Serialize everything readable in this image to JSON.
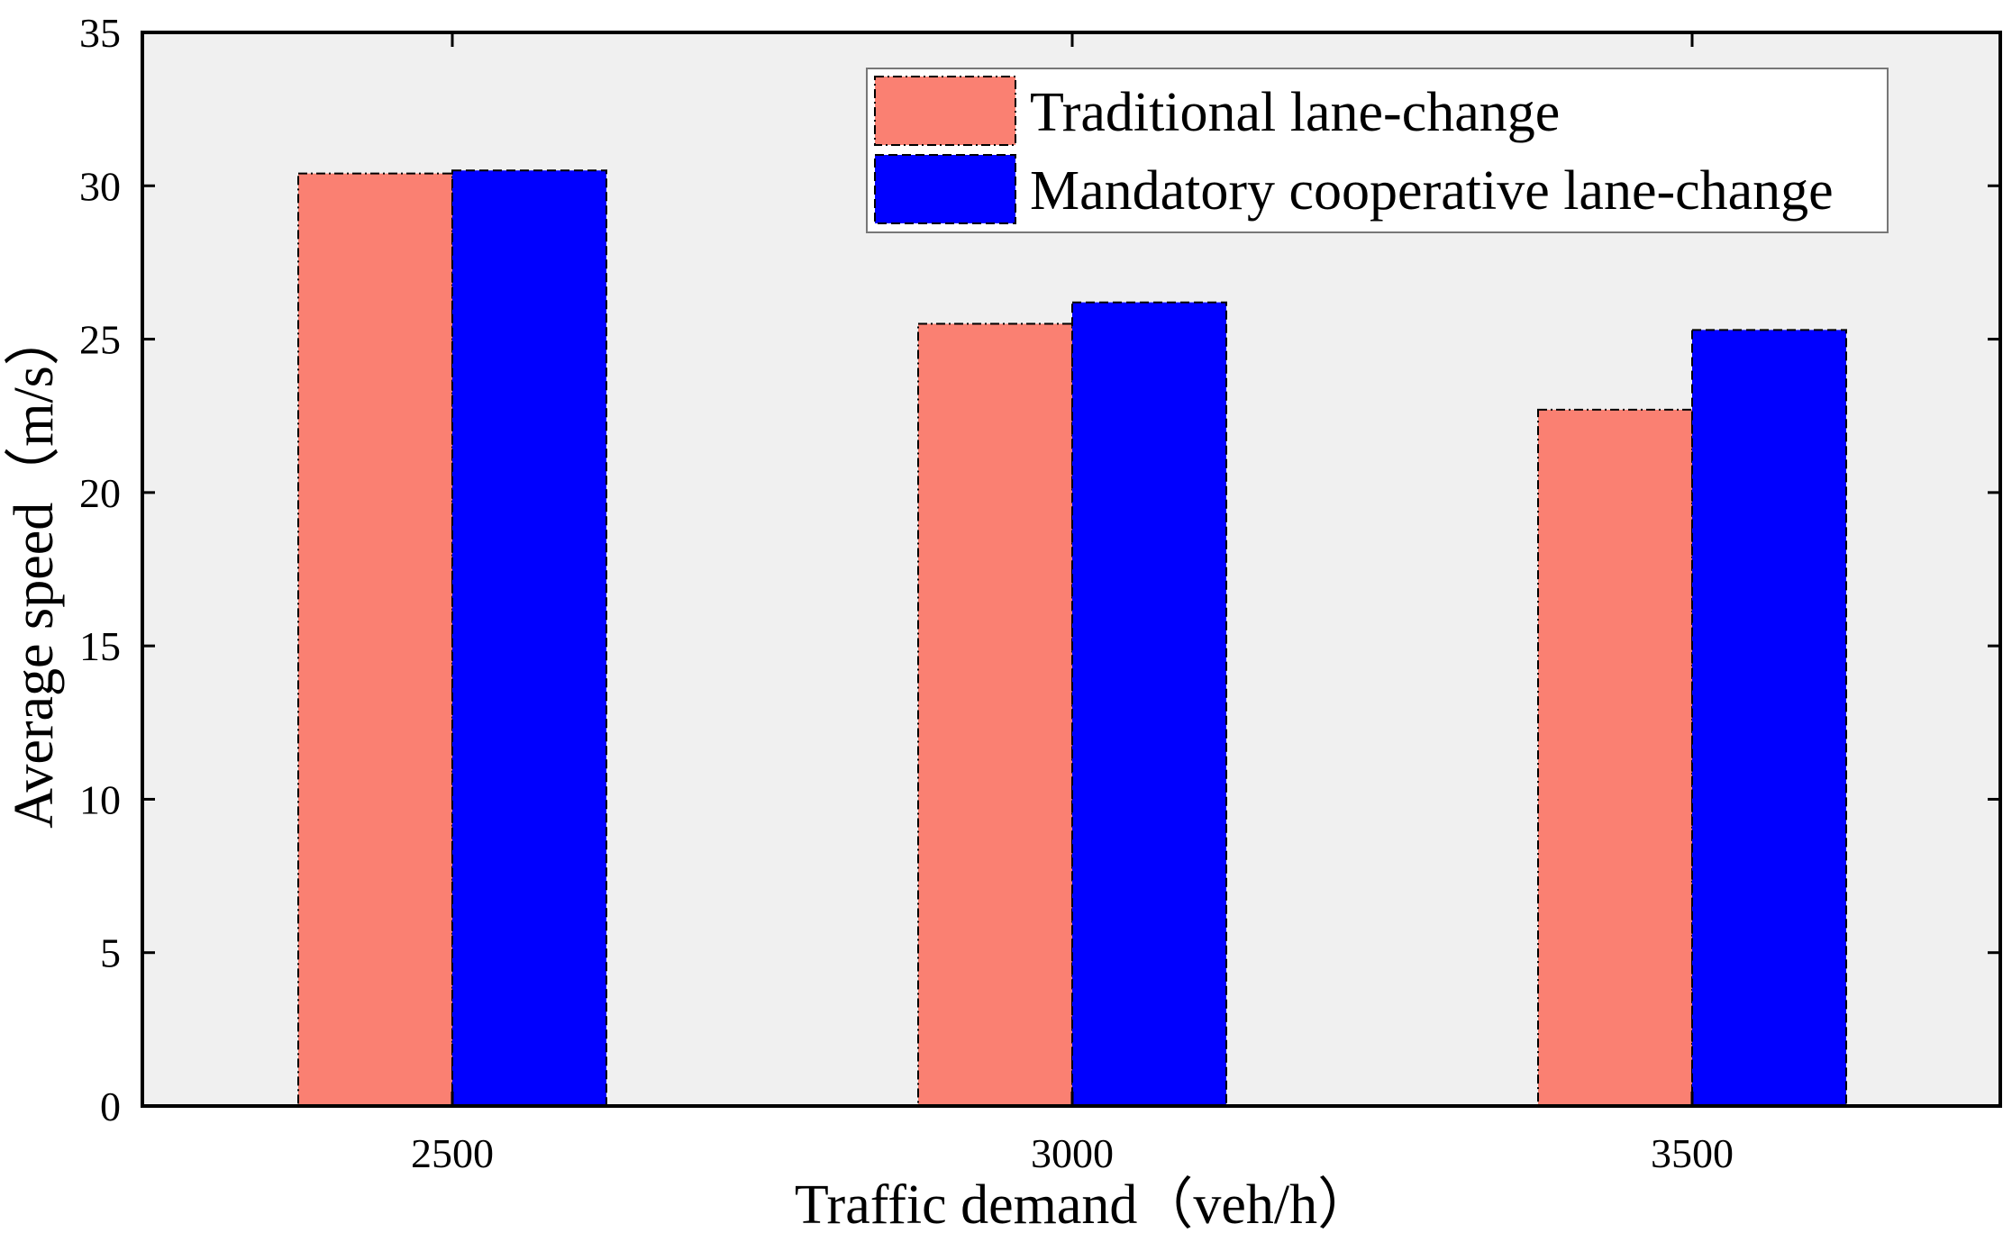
{
  "chart_data": {
    "type": "bar",
    "categories": [
      "2500",
      "3000",
      "3500"
    ],
    "series": [
      {
        "name": "Traditional lane-change",
        "color": "#FA8072",
        "values": [
          30.4,
          25.5,
          22.7
        ]
      },
      {
        "name": "Mandatory cooperative lane-change",
        "color": "#0000FF",
        "values": [
          30.5,
          26.2,
          25.3
        ]
      }
    ],
    "title": "",
    "xlabel": "Traffic demand（veh/h）",
    "ylabel": "Average speed（m/s）",
    "ylim": [
      0,
      35
    ],
    "yticks": [
      0,
      5,
      10,
      15,
      20,
      25,
      30,
      35
    ],
    "ytick_labels": [
      "0",
      "5",
      "10",
      "15",
      "20",
      "25",
      "30",
      "35"
    ],
    "grid": false,
    "legend_position": "top-right",
    "plot_background": "#F0F0F0"
  }
}
